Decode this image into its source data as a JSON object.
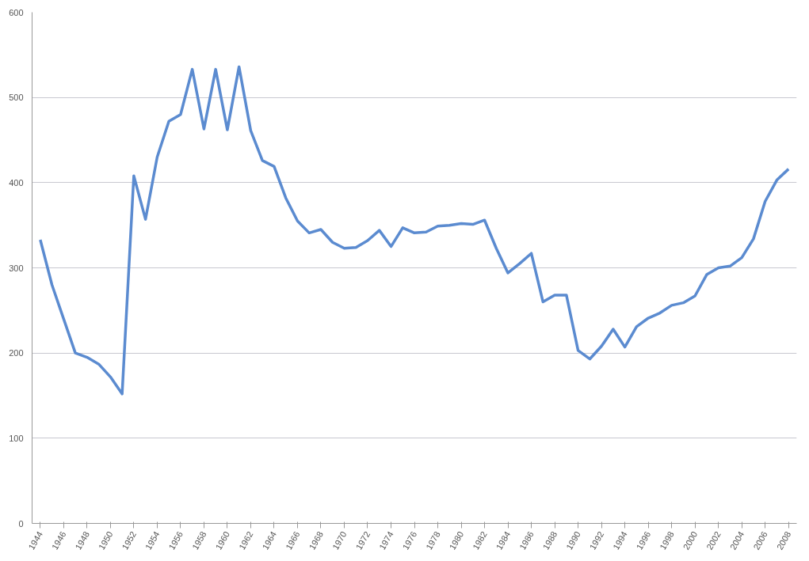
{
  "chart_data": {
    "type": "line",
    "x": [
      1944,
      1945,
      1946,
      1947,
      1948,
      1949,
      1950,
      1951,
      1952,
      1953,
      1954,
      1955,
      1956,
      1957,
      1958,
      1959,
      1960,
      1961,
      1962,
      1963,
      1964,
      1965,
      1966,
      1967,
      1968,
      1969,
      1970,
      1971,
      1972,
      1973,
      1974,
      1975,
      1976,
      1977,
      1978,
      1979,
      1980,
      1981,
      1982,
      1983,
      1984,
      1985,
      1986,
      1987,
      1988,
      1989,
      1990,
      1991,
      1992,
      1993,
      1994,
      1995,
      1996,
      1997,
      1998,
      1999,
      2000,
      2001,
      2002,
      2003,
      2004,
      2005,
      2006,
      2007,
      2008
    ],
    "series": [
      {
        "color": "#5b8bd0",
        "values": [
          333,
          280,
          240,
          200,
          195,
          187,
          172,
          152,
          408,
          357,
          430,
          472,
          480,
          533,
          463,
          533,
          462,
          536,
          461,
          426,
          419,
          382,
          355,
          341,
          345,
          330,
          323,
          324,
          332,
          344,
          325,
          347,
          341,
          342,
          349,
          350,
          352,
          351,
          356,
          323,
          294,
          305,
          317,
          260,
          268,
          268,
          203,
          193,
          208,
          228,
          207,
          231,
          241,
          247,
          256,
          259,
          267,
          292,
          300,
          302,
          312,
          334,
          378,
          403,
          416
        ]
      }
    ],
    "xlim": [
      1943.3,
      2008.7
    ],
    "xticks": [
      1944,
      1946,
      1948,
      1950,
      1952,
      1954,
      1956,
      1958,
      1960,
      1962,
      1964,
      1966,
      1968,
      1970,
      1972,
      1974,
      1976,
      1978,
      1980,
      1982,
      1984,
      1986,
      1988,
      1990,
      1992,
      1994,
      1996,
      1998,
      2000,
      2002,
      2004,
      2006,
      2008
    ],
    "ylim": [
      0,
      600
    ],
    "yticks": [
      0,
      100,
      200,
      300,
      400,
      500,
      600
    ],
    "grid": "y",
    "marker": "none",
    "line_style": "solid"
  }
}
